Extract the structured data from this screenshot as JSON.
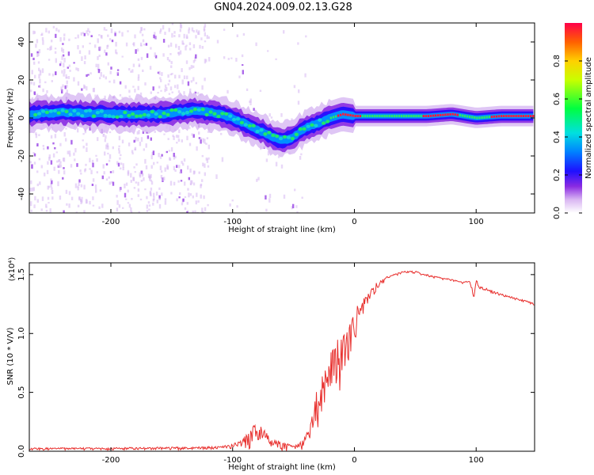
{
  "figure_title": "GN04.2024.009.02.13.G28",
  "chart_data": [
    {
      "type": "heatmap",
      "xlabel": "Height of straight line (km)",
      "ylabel": "Frequency (Hz)",
      "xlim": [
        -267,
        148
      ],
      "ylim": [
        -50,
        50
      ],
      "xticks": [
        -200,
        -100,
        0,
        100
      ],
      "xtick_labels": [
        "-200",
        "-100",
        "0",
        "100"
      ],
      "yticks": [
        -40,
        -20,
        0,
        20,
        40
      ],
      "ytick_labels": [
        "-40",
        "-20",
        "0",
        "20",
        "40"
      ],
      "colorbar": {
        "label": "Normalized spectral amplitude",
        "range": [
          0,
          1
        ],
        "ticks": [
          0,
          0.2,
          0.4,
          0.6,
          0.8
        ],
        "tick_labels": [
          "0.0",
          "0.2",
          "0.4",
          "0.6",
          "0.8"
        ],
        "colormap": "rainbow"
      },
      "ridge": {
        "x": [
          -267,
          -240,
          -200,
          -160,
          -130,
          -110,
          -100,
          -90,
          -80,
          -70,
          -60,
          -50,
          -40,
          -30,
          -20,
          -10,
          0,
          20,
          40,
          60,
          80,
          90,
          100,
          120,
          148
        ],
        "y": [
          2,
          3,
          2,
          2,
          4,
          2,
          0,
          -3,
          -6,
          -9,
          -12,
          -10,
          -5,
          -3,
          0,
          2,
          1,
          1,
          1,
          1,
          2,
          1,
          0,
          1,
          1
        ]
      }
    },
    {
      "type": "line",
      "xlabel": "Height of straight line (km)",
      "ylabel": "SNR (10 * V/V)",
      "y_multiplier": "(x10⁴)",
      "xlim": [
        -267,
        148
      ],
      "ylim": [
        0,
        1.6
      ],
      "xticks": [
        -200,
        -100,
        0,
        100
      ],
      "xtick_labels": [
        "-200",
        "-100",
        "0",
        "100"
      ],
      "yticks": [
        0,
        0.5,
        1.0,
        1.5
      ],
      "ytick_labels": [
        "0.0",
        "0.5",
        "1.0",
        "1.5"
      ],
      "series": [
        {
          "color": "#e8302e",
          "envelope_x": [
            -267,
            -200,
            -140,
            -110,
            -95,
            -85,
            -78,
            -70,
            -60,
            -50,
            -42,
            -36,
            -30,
            -25,
            -20,
            -15,
            -10,
            -5,
            0,
            10,
            20,
            30,
            40,
            50,
            60,
            70,
            80,
            90,
            95,
            98,
            100,
            103,
            110,
            120,
            130,
            148
          ],
          "envelope_y": [
            0.03,
            0.03,
            0.04,
            0.04,
            0.08,
            0.18,
            0.3,
            0.12,
            0.08,
            0.05,
            0.1,
            0.35,
            0.55,
            0.7,
            0.85,
            0.95,
            1.0,
            1.1,
            1.2,
            1.35,
            1.45,
            1.5,
            1.53,
            1.53,
            1.5,
            1.48,
            1.46,
            1.44,
            1.45,
            1.35,
            1.46,
            1.4,
            1.38,
            1.34,
            1.31,
            1.26
          ],
          "noise_amplitude": [
            0.02,
            0.02,
            0.03,
            0.02,
            0.06,
            0.18,
            0.2,
            0.1,
            0.08,
            0.05,
            0.1,
            0.25,
            0.45,
            0.5,
            0.55,
            0.5,
            0.45,
            0.35,
            0.3,
            0.12,
            0.06,
            0.03,
            0.02,
            0.02,
            0.02,
            0.02,
            0.02,
            0.02,
            0.03,
            0.1,
            0.05,
            0.04,
            0.03,
            0.02,
            0.02,
            0.02
          ]
        }
      ]
    }
  ]
}
